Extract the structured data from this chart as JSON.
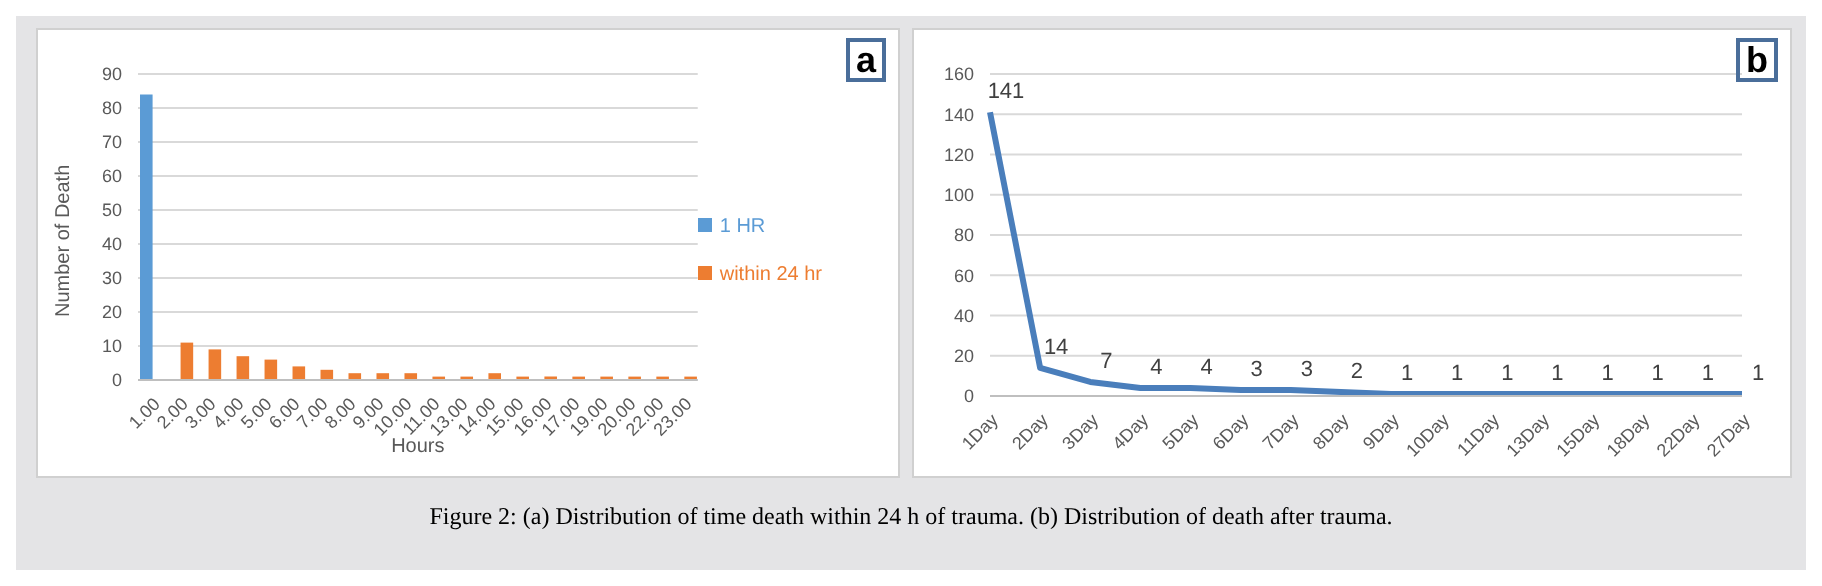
{
  "chart_data": [
    {
      "type": "bar",
      "xlabel": "Hours",
      "ylabel": "Number of Death",
      "categories": [
        "1.00",
        "2.00",
        "3.00",
        "4.00",
        "5.00",
        "6.00",
        "7.00",
        "8.00",
        "9.00",
        "10.00",
        "11.00",
        "13.00",
        "14.00",
        "15.00",
        "16.00",
        "17.00",
        "19.00",
        "20.00",
        "22.00",
        "23.00"
      ],
      "series": [
        {
          "name": "1 HR",
          "color": "#5b9bd5",
          "values": [
            84,
            null,
            null,
            null,
            null,
            null,
            null,
            null,
            null,
            null,
            null,
            null,
            null,
            null,
            null,
            null,
            null,
            null,
            null,
            null
          ]
        },
        {
          "name": "within 24 hr",
          "color": "#ed7d31",
          "values": [
            null,
            11,
            9,
            7,
            6,
            4,
            3,
            2,
            2,
            2,
            1,
            1,
            2,
            1,
            1,
            1,
            1,
            1,
            1,
            1
          ]
        }
      ],
      "ylim": [
        0,
        90
      ],
      "yticks": [
        0,
        10,
        20,
        30,
        40,
        50,
        60,
        70,
        80,
        90
      ],
      "grid": "y",
      "legend": "right",
      "annotations": [
        "a",
        "Figure 2: (a) Distribution of time death within 24 h of trauma. (b) Distribution of death after trauma."
      ]
    },
    {
      "type": "line",
      "categories": [
        "1Day",
        "2Day",
        "3Day",
        "4Day",
        "5Day",
        "6Day",
        "7Day",
        "8Day",
        "9Day",
        "10Day",
        "11Day",
        "13Day",
        "15Day",
        "18Day",
        "22Day",
        "27Day"
      ],
      "series": [
        {
          "color": "#4a7ebb",
          "values": [
            141,
            14,
            7,
            4,
            4,
            3,
            3,
            2,
            1,
            1,
            1,
            1,
            1,
            1,
            1,
            1
          ]
        }
      ],
      "ylim": [
        0,
        160
      ],
      "yticks": [
        0,
        20,
        40,
        60,
        80,
        100,
        120,
        140,
        160
      ],
      "grid": "y",
      "legend": false,
      "marker": "none",
      "line_style": "solid",
      "data_labels": true,
      "annotations": [
        "b"
      ]
    }
  ]
}
